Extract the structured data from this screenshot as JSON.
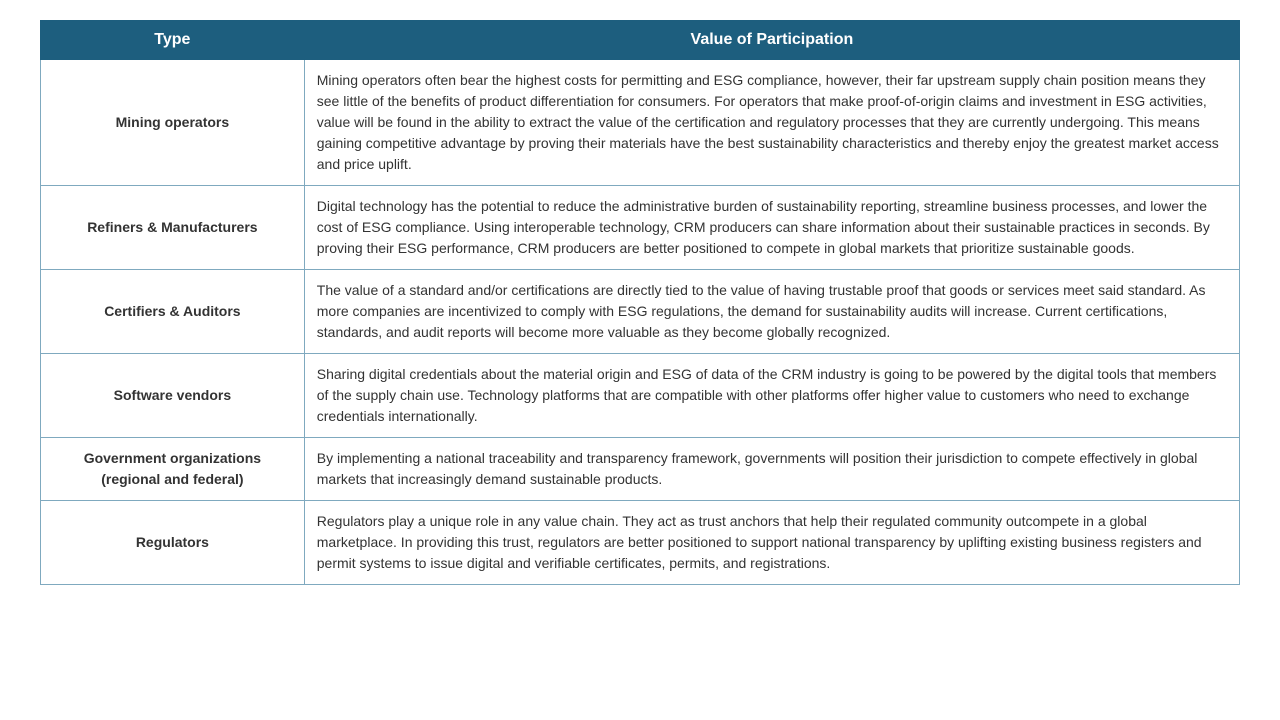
{
  "table": {
    "columns": [
      "Type",
      "Value of Participation"
    ],
    "header_bg": "#1d5e7e",
    "header_text_color": "#ffffff",
    "border_color": "#7fa9bf",
    "font_family": "Arial, Helvetica, sans-serif",
    "header_fontsize": 16,
    "body_fontsize": 14,
    "rows": [
      {
        "type": "Mining operators",
        "value": "Mining operators often bear the highest costs for permitting and ESG compliance, however, their far upstream supply chain position means they see little of the benefits of product differentiation for consumers. For operators that make proof-of-origin claims and investment in ESG activities, value will be found in the ability to extract the value of the certification and regulatory processes that they are currently undergoing. This means gaining competitive advantage by proving their materials have the best sustainability characteristics and thereby enjoy the greatest market access and price uplift."
      },
      {
        "type": "Refiners & Manufacturers",
        "value": "Digital technology has the potential to reduce the administrative burden of sustainability reporting, streamline business processes, and lower the cost of ESG compliance. Using interoperable technology, CRM producers can share information about their sustainable practices in seconds. By proving their ESG performance, CRM producers are better positioned to compete in global markets that prioritize sustainable goods."
      },
      {
        "type": "Certifiers & Auditors",
        "value": "The value of a standard and/or certifications are directly tied to the value of having trustable proof that goods or services meet said standard. As more companies are incentivized to comply with ESG regulations, the demand for sustainability audits will increase. Current certifications, standards, and audit reports will become more valuable as they become globally recognized."
      },
      {
        "type": "Software vendors",
        "value": "Sharing digital credentials about the material origin and ESG of data of the CRM industry is going to be powered by the digital tools that members of the supply chain use. Technology platforms that are compatible with other platforms offer higher value to customers who need to exchange credentials internationally."
      },
      {
        "type": "Government organizations (regional and federal)",
        "value": "By implementing a national traceability and transparency framework, governments will position their jurisdiction to compete effectively in global markets that increasingly demand sustainable products."
      },
      {
        "type": "Regulators",
        "value": "Regulators play a unique role in any value chain. They act as trust anchors that help their regulated community outcompete in a global marketplace. In providing this trust, regulators are better positioned to support national transparency by uplifting existing business registers and permit systems to issue digital and verifiable certificates, permits, and registrations."
      }
    ]
  }
}
